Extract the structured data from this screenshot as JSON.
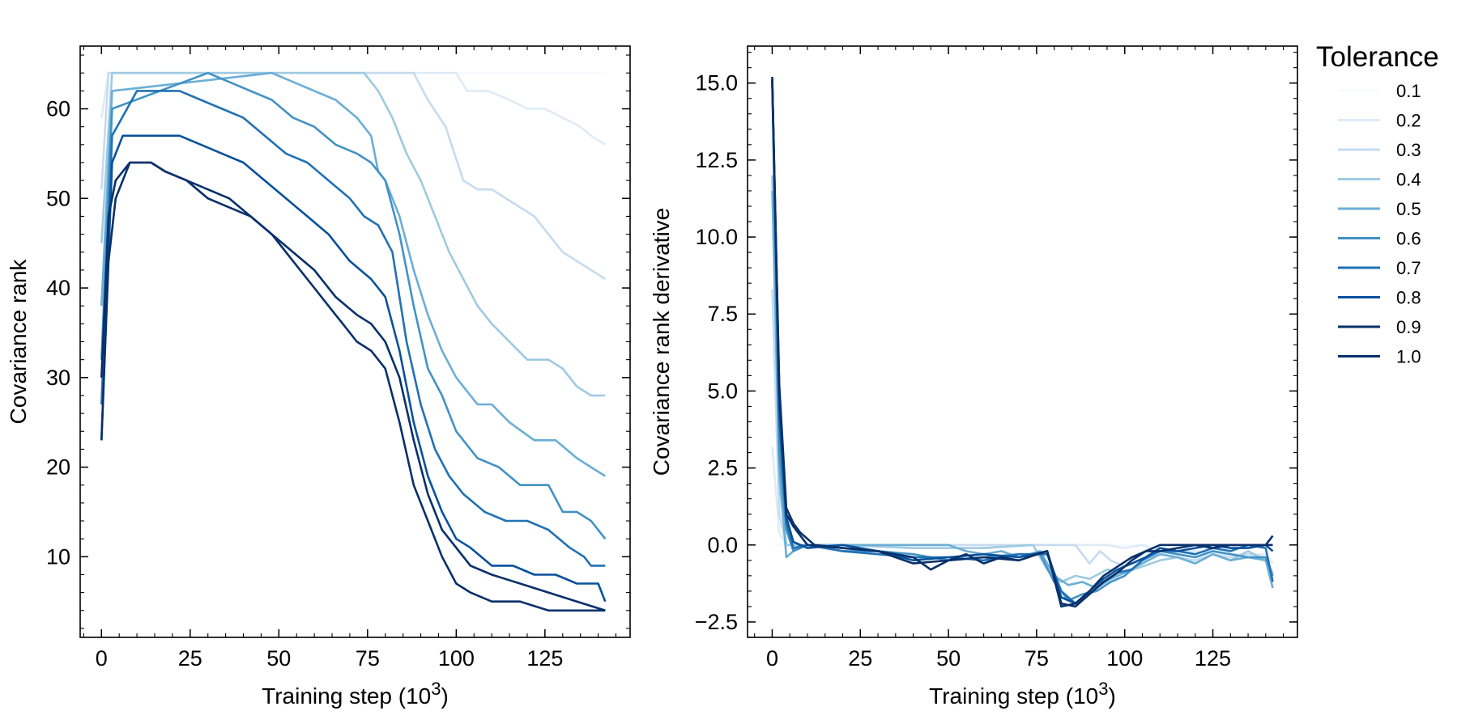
{
  "chart_data": [
    {
      "type": "line",
      "xlabel": "Training step (10",
      "xlabel_sup": "3",
      "xlabel_close": ")",
      "ylabel": "Covariance rank",
      "xlim": [
        -6,
        149
      ],
      "ylim": [
        1,
        67
      ],
      "xticks": [
        0,
        25,
        50,
        75,
        100,
        125
      ],
      "xtick_labels": [
        "0",
        "25",
        "50",
        "75",
        "100",
        "125"
      ],
      "yticks": [
        10,
        20,
        30,
        40,
        50,
        60
      ],
      "ytick_labels": [
        "10",
        "20",
        "30",
        "40",
        "50",
        "60"
      ],
      "grid": false,
      "series": [
        {
          "name": "0.1",
          "color": "#f7fbff",
          "x": [
            0,
            2,
            140,
            142
          ],
          "values": [
            64,
            64,
            64,
            64
          ]
        },
        {
          "name": "0.2",
          "color": "#deebf7",
          "x": [
            0,
            2,
            100,
            103,
            109,
            115,
            120,
            125,
            130,
            135,
            138,
            142
          ],
          "values": [
            59,
            64,
            64,
            62,
            62,
            61,
            60,
            60,
            59,
            58,
            57,
            56
          ]
        },
        {
          "name": "0.3",
          "color": "#c6dbef",
          "x": [
            0,
            2,
            88,
            92,
            97,
            102,
            106,
            110,
            118,
            122,
            126,
            130,
            134,
            138,
            142
          ],
          "values": [
            51,
            64,
            64,
            61,
            58,
            52,
            51,
            51,
            49,
            48,
            46,
            44,
            43,
            42,
            41
          ]
        },
        {
          "name": "0.4",
          "color": "#9ecae1",
          "x": [
            0,
            3,
            74,
            78,
            82,
            86,
            90,
            94,
            98,
            102,
            106,
            110,
            115,
            120,
            126,
            130,
            134,
            138,
            142
          ],
          "values": [
            45,
            64,
            64,
            62,
            59,
            55,
            52,
            48,
            44,
            41,
            38,
            36,
            34,
            32,
            32,
            31,
            29,
            28,
            28
          ]
        },
        {
          "name": "0.5",
          "color": "#6baed6",
          "x": [
            0,
            3,
            48,
            54,
            60,
            66,
            72,
            76,
            78,
            80,
            84,
            88,
            92,
            96,
            100,
            106,
            110,
            115,
            122,
            128,
            134,
            138,
            142
          ],
          "values": [
            38,
            62,
            64,
            63,
            62,
            61,
            59,
            57,
            53,
            52,
            48,
            42,
            37,
            33,
            30,
            27,
            27,
            25,
            23,
            23,
            21,
            20,
            19
          ]
        },
        {
          "name": "0.6",
          "color": "#4292c6",
          "x": [
            0,
            3,
            30,
            36,
            42,
            48,
            54,
            60,
            66,
            72,
            76,
            80,
            84,
            88,
            92,
            96,
            100,
            106,
            112,
            118,
            126,
            130,
            134,
            138,
            142
          ],
          "values": [
            32,
            60,
            64,
            63,
            62,
            61,
            59,
            58,
            56,
            55,
            54,
            52,
            46,
            38,
            31,
            28,
            24,
            21,
            20,
            18,
            18,
            15,
            15,
            14,
            12
          ]
        },
        {
          "name": "0.7",
          "color": "#2171b5",
          "x": [
            0,
            3,
            10,
            22,
            28,
            34,
            40,
            46,
            52,
            58,
            64,
            70,
            74,
            78,
            82,
            86,
            90,
            94,
            98,
            102,
            108,
            114,
            120,
            126,
            132,
            136,
            138,
            142
          ],
          "values": [
            27,
            57,
            62,
            62,
            61,
            60,
            59,
            57,
            55,
            54,
            52,
            50,
            48,
            47,
            44,
            34,
            27,
            22,
            19,
            17,
            15,
            14,
            14,
            13,
            11,
            10,
            9,
            9
          ]
        },
        {
          "name": "0.8",
          "color": "#08519c",
          "x": [
            0,
            3,
            6,
            22,
            28,
            34,
            40,
            46,
            52,
            58,
            64,
            70,
            76,
            80,
            84,
            88,
            92,
            96,
            100,
            104,
            110,
            116,
            122,
            128,
            134,
            140,
            142
          ],
          "values": [
            23,
            54,
            57,
            57,
            56,
            55,
            54,
            52,
            50,
            48,
            46,
            43,
            41,
            39,
            33,
            25,
            19,
            15,
            12,
            11,
            9,
            9,
            8,
            8,
            7,
            7,
            5
          ]
        },
        {
          "name": "0.9",
          "color": "#08306b",
          "x": [
            0,
            2,
            4,
            8,
            14,
            18,
            24,
            30,
            36,
            42,
            48,
            54,
            60,
            66,
            72,
            76,
            80,
            84,
            88,
            92,
            96,
            100,
            104,
            110,
            118,
            126,
            134,
            142
          ],
          "values": [
            30,
            48,
            52,
            54,
            54,
            53,
            52,
            51,
            50,
            48,
            46,
            44,
            42,
            39,
            37,
            36,
            34,
            30,
            23,
            17,
            13,
            11,
            9,
            8,
            7,
            6,
            5,
            4
          ]
        },
        {
          "name": "1.0",
          "color": "#08306b",
          "x": [
            0,
            2,
            4,
            8,
            14,
            18,
            24,
            30,
            36,
            42,
            48,
            54,
            60,
            66,
            68,
            72,
            76,
            80,
            84,
            88,
            92,
            96,
            100,
            104,
            110,
            118,
            126,
            134,
            142
          ],
          "values": [
            23,
            43,
            50,
            54,
            54,
            53,
            52,
            50,
            49,
            48,
            46,
            43,
            40,
            37,
            36,
            34,
            33,
            31,
            25,
            18,
            14,
            10,
            7,
            6,
            5,
            5,
            4,
            4,
            4
          ]
        }
      ]
    },
    {
      "type": "line",
      "xlabel": "Training step (10",
      "xlabel_sup": "3",
      "xlabel_close": ")",
      "ylabel": "Covariance rank derivative",
      "xlim": [
        -7,
        149
      ],
      "ylim": [
        -3.0,
        16.2
      ],
      "xticks": [
        0,
        25,
        50,
        75,
        100,
        125
      ],
      "xtick_labels": [
        "0",
        "25",
        "50",
        "75",
        "100",
        "125"
      ],
      "yticks": [
        -2.5,
        0.0,
        2.5,
        5.0,
        7.5,
        10.0,
        12.5,
        15.0
      ],
      "ytick_labels": [
        "−2.5",
        "0.0",
        "2.5",
        "5.0",
        "7.5",
        "10.0",
        "12.5",
        "15.0"
      ],
      "grid": false,
      "legend_position": "outside-right",
      "legend_title": "Tolerance",
      "series": [
        {
          "name": "0.1",
          "color": "#f7fbff",
          "x": [
            0,
            142
          ],
          "values": [
            0.0,
            0.0
          ]
        },
        {
          "name": "0.2",
          "color": "#deebf7",
          "x": [
            0,
            2,
            4,
            90,
            95,
            100,
            105,
            110,
            120,
            130,
            140,
            142
          ],
          "values": [
            3.2,
            0.4,
            0.0,
            0.0,
            0.0,
            -0.1,
            0.0,
            -0.2,
            -0.2,
            -0.3,
            -0.3,
            -0.6
          ]
        },
        {
          "name": "0.3",
          "color": "#c6dbef",
          "x": [
            0,
            2,
            4,
            86,
            88,
            90,
            93,
            96,
            100,
            105,
            110,
            115,
            120,
            125,
            130,
            135,
            140,
            142
          ],
          "values": [
            8.3,
            1.0,
            0.0,
            0.0,
            -0.3,
            -0.6,
            -0.2,
            -0.5,
            -0.7,
            -0.5,
            -0.3,
            -0.4,
            -0.5,
            -0.3,
            -0.4,
            -0.3,
            -0.4,
            -0.9
          ]
        },
        {
          "name": "0.4",
          "color": "#9ecae1",
          "x": [
            0,
            2,
            4,
            20,
            40,
            60,
            74,
            78,
            82,
            86,
            90,
            95,
            100,
            105,
            110,
            115,
            120,
            125,
            130,
            135,
            140,
            142
          ],
          "values": [
            12.0,
            2.0,
            0.0,
            0.0,
            -0.1,
            -0.1,
            0.0,
            -0.8,
            -1.2,
            -1.0,
            -1.1,
            -0.8,
            -0.9,
            -0.7,
            -0.5,
            -0.4,
            -0.6,
            -0.3,
            -0.5,
            -0.2,
            -0.5,
            -1.1
          ]
        },
        {
          "name": "0.5",
          "color": "#6baed6",
          "x": [
            0,
            2,
            4,
            8,
            20,
            40,
            50,
            55,
            60,
            65,
            70,
            76,
            80,
            84,
            88,
            92,
            96,
            100,
            105,
            110,
            115,
            120,
            125,
            130,
            135,
            140,
            142
          ],
          "values": [
            11.5,
            2.5,
            -0.4,
            0.0,
            0.0,
            0.0,
            0.0,
            -0.2,
            -0.3,
            -0.2,
            -0.4,
            -0.2,
            -1.0,
            -1.3,
            -1.2,
            -1.4,
            -1.1,
            -0.9,
            -0.6,
            -0.3,
            -0.4,
            -0.6,
            -0.3,
            -0.5,
            -0.4,
            -0.5,
            -1.4
          ]
        },
        {
          "name": "0.6",
          "color": "#4292c6",
          "x": [
            0,
            2,
            4,
            6,
            10,
            20,
            30,
            40,
            50,
            60,
            70,
            76,
            80,
            84,
            88,
            92,
            96,
            100,
            105,
            110,
            115,
            120,
            125,
            130,
            135,
            140,
            142
          ],
          "values": [
            15.2,
            3.0,
            0.5,
            -0.2,
            0.0,
            -0.2,
            -0.2,
            -0.3,
            -0.5,
            -0.4,
            -0.3,
            -0.3,
            -1.2,
            -1.8,
            -1.6,
            -1.5,
            -1.2,
            -1.0,
            -0.5,
            -0.2,
            -0.3,
            -0.4,
            -0.2,
            -0.3,
            -0.4,
            -0.4,
            -1.0
          ]
        },
        {
          "name": "0.7",
          "color": "#2171b5",
          "x": [
            0,
            2,
            4,
            6,
            10,
            20,
            30,
            40,
            50,
            60,
            70,
            78,
            82,
            86,
            90,
            94,
            98,
            102,
            106,
            110,
            115,
            120,
            125,
            130,
            135,
            140,
            142
          ],
          "values": [
            15.0,
            4.0,
            0.7,
            -0.1,
            0.0,
            -0.2,
            -0.3,
            -0.4,
            -0.4,
            -0.5,
            -0.3,
            -0.3,
            -1.5,
            -1.9,
            -1.6,
            -1.2,
            -0.9,
            -0.8,
            -0.4,
            -0.2,
            -0.2,
            -0.3,
            -0.1,
            -0.2,
            0.0,
            -0.1,
            -1.2
          ]
        },
        {
          "name": "0.8",
          "color": "#08519c",
          "x": [
            0,
            2,
            4,
            6,
            10,
            20,
            30,
            40,
            50,
            60,
            70,
            78,
            82,
            86,
            90,
            94,
            98,
            102,
            106,
            110,
            115,
            120,
            125,
            130,
            135,
            140,
            142
          ],
          "values": [
            15.1,
            4.5,
            0.9,
            0.1,
            -0.1,
            0.0,
            -0.2,
            -0.5,
            -0.4,
            -0.3,
            -0.4,
            -0.2,
            -1.7,
            -1.9,
            -1.5,
            -1.1,
            -0.8,
            -0.6,
            -0.4,
            -0.1,
            -0.2,
            -0.1,
            0.0,
            -0.1,
            -0.1,
            0.0,
            -0.2
          ]
        },
        {
          "name": "0.9",
          "color": "#08306b",
          "x": [
            0,
            2,
            4,
            6,
            10,
            20,
            30,
            40,
            50,
            60,
            70,
            78,
            82,
            86,
            90,
            94,
            98,
            102,
            106,
            110,
            115,
            120,
            125,
            130,
            135,
            140,
            142
          ],
          "values": [
            15.2,
            5.0,
            1.0,
            0.6,
            0.0,
            -0.1,
            -0.2,
            -0.6,
            -0.5,
            -0.4,
            -0.5,
            -0.2,
            -1.9,
            -2.0,
            -1.6,
            -1.2,
            -0.9,
            -0.5,
            -0.2,
            -0.2,
            -0.1,
            0.0,
            0.0,
            0.0,
            0.0,
            0.0,
            0.3
          ]
        },
        {
          "name": "1.0",
          "color": "#08306b",
          "x": [
            0,
            2,
            4,
            6,
            8,
            12,
            20,
            30,
            40,
            45,
            50,
            55,
            60,
            65,
            70,
            75,
            78,
            82,
            86,
            90,
            94,
            98,
            102,
            106,
            110,
            115,
            120,
            125,
            130,
            135,
            140,
            142
          ],
          "values": [
            15.1,
            5.2,
            1.2,
            0.7,
            0.4,
            0.0,
            -0.1,
            -0.2,
            -0.4,
            -0.8,
            -0.5,
            -0.3,
            -0.6,
            -0.4,
            -0.5,
            -0.3,
            -0.2,
            -2.0,
            -1.9,
            -1.5,
            -1.0,
            -0.7,
            -0.4,
            -0.2,
            0.0,
            0.0,
            0.0,
            -0.1,
            0.0,
            0.0,
            0.0,
            0.0
          ]
        }
      ]
    }
  ]
}
